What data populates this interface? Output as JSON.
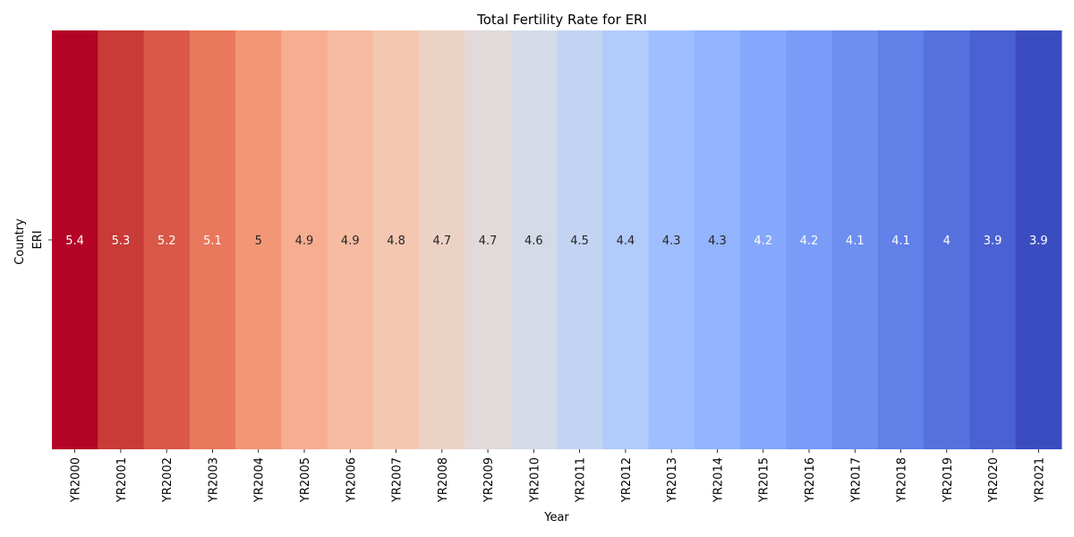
{
  "chart_data": {
    "type": "heatmap",
    "title": "Total Fertility Rate for ERI",
    "xlabel": "Year",
    "ylabel": "Country",
    "rows": [
      "ERI"
    ],
    "columns": [
      "YR2000",
      "YR2001",
      "YR2002",
      "YR2003",
      "YR2004",
      "YR2005",
      "YR2006",
      "YR2007",
      "YR2008",
      "YR2009",
      "YR2010",
      "YR2011",
      "YR2012",
      "YR2013",
      "YR2014",
      "YR2015",
      "YR2016",
      "YR2017",
      "YR2018",
      "YR2019",
      "YR2020",
      "YR2021"
    ],
    "values": [
      [
        5.4,
        5.3,
        5.2,
        5.1,
        5,
        4.9,
        4.9,
        4.8,
        4.7,
        4.7,
        4.6,
        4.5,
        4.4,
        4.3,
        4.3,
        4.2,
        4.2,
        4.1,
        4.1,
        4,
        3.9,
        3.9
      ]
    ],
    "colormap": "coolwarm",
    "cell_colors": [
      "#b40426",
      "#c83b37",
      "#d95848",
      "#e9785d",
      "#f39675",
      "#f7ad90",
      "#f6bba0",
      "#f4c7b0",
      "#ecd2c5",
      "#e2dad9",
      "#d4dbe6",
      "#c3d4f3",
      "#b1cbfb",
      "#9fbefe",
      "#92b3fd",
      "#85a7fc",
      "#7a9cf8",
      "#6e8ef0",
      "#6180e8",
      "#5571dd",
      "#4961d2",
      "#3b4cc0"
    ],
    "label_colors": [
      "#ffffff",
      "#ffffff",
      "#ffffff",
      "#ffffff",
      "#262626",
      "#262626",
      "#262626",
      "#262626",
      "#262626",
      "#262626",
      "#262626",
      "#262626",
      "#262626",
      "#262626",
      "#262626",
      "#ffffff",
      "#ffffff",
      "#ffffff",
      "#ffffff",
      "#ffffff",
      "#ffffff",
      "#ffffff"
    ],
    "legend": "none",
    "grid": false
  }
}
